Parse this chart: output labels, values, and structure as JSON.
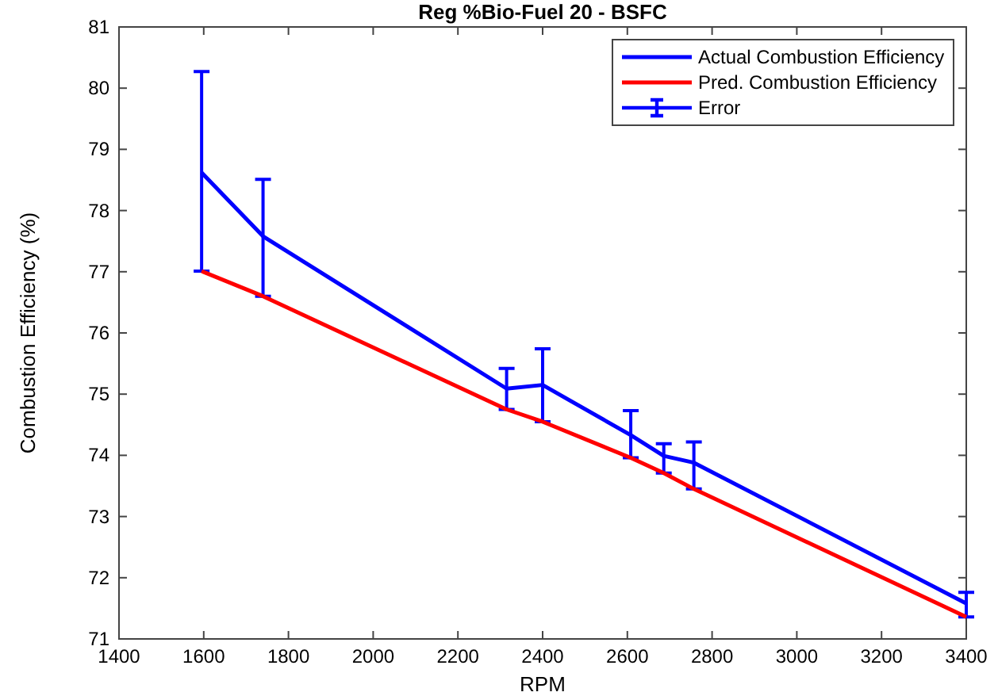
{
  "chart_data": {
    "type": "line",
    "title": "Reg %Bio-Fuel 20 - BSFC",
    "xlabel": "RPM",
    "ylabel": "Combustion Efficiency (%)",
    "x": [
      1595,
      1740,
      2315,
      2400,
      2608,
      2686,
      2757,
      3400
    ],
    "series": [
      {
        "name": "Actual Combustion Efficiency",
        "color": "#0000ff",
        "values": [
          78.62,
          77.58,
          75.09,
          75.15,
          74.33,
          73.99,
          73.88,
          71.58
        ],
        "errors": [
          [
            77.01,
            80.27
          ],
          [
            76.6,
            78.51
          ],
          [
            74.75,
            75.42
          ],
          [
            74.55,
            75.74
          ],
          [
            73.96,
            74.73
          ],
          [
            73.71,
            74.19
          ],
          [
            73.45,
            74.22
          ],
          [
            71.36,
            71.76
          ]
        ]
      },
      {
        "name": "Pred. Combustion Efficiency",
        "color": "#ff0000",
        "values": [
          77.01,
          76.6,
          74.75,
          74.55,
          73.96,
          73.71,
          73.45,
          71.36
        ]
      }
    ],
    "annotations": [
      "Error"
    ],
    "xlim": [
      1400,
      3400
    ],
    "xticks": [
      1400,
      1600,
      1800,
      2000,
      2200,
      2400,
      2600,
      2800,
      3000,
      3200,
      3400
    ],
    "ylim": [
      71,
      81
    ],
    "yticks": [
      71,
      72,
      73,
      74,
      75,
      76,
      77,
      78,
      79,
      80,
      81
    ],
    "grid": false,
    "legend": "top right"
  }
}
